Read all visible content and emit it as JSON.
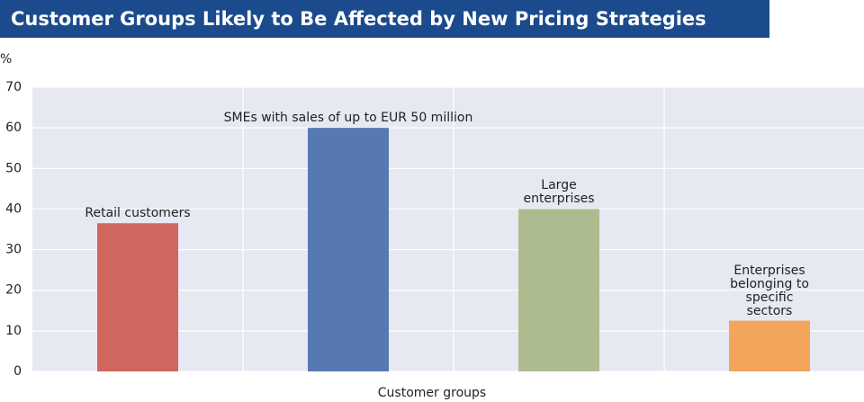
{
  "chart_data": {
    "type": "bar",
    "title": "Customer Groups Likely to Be Affected by New Pricing Strategies",
    "y_unit": "%",
    "x_label": "Customer groups",
    "categories": [
      "Retail customers",
      "SMEs with sales of up to EUR 50 million",
      "Large\nenterprises",
      "Enterprises belonging to\nspecific sectors"
    ],
    "values": [
      36.5,
      60,
      40,
      12.5
    ],
    "colors": [
      "#d0675e",
      "#5779b3",
      "#adbc8f",
      "#f4a55c"
    ],
    "ylim": [
      0,
      70
    ],
    "yticks": [
      0,
      10,
      20,
      30,
      40,
      50,
      60,
      70
    ],
    "grid": true
  }
}
